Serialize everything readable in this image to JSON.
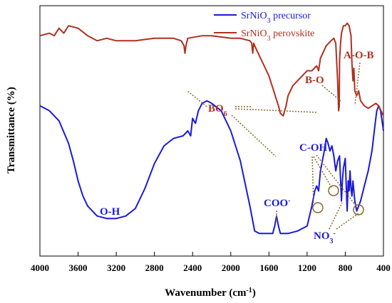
{
  "chart_data": {
    "type": "line",
    "xlabel": "Wavenumber (cm",
    "xlabel_sup": "-1",
    "xlabel_tail": ")",
    "ylabel": "Transmittance (%)",
    "xlim": [
      4000,
      400
    ],
    "x_reversed": true,
    "xticks": [
      4000,
      3600,
      3200,
      2800,
      2400,
      2000,
      1600,
      1200,
      800,
      400
    ],
    "ylim": [
      0,
      100
    ],
    "grid": false,
    "legend_position": "top-right",
    "series": [
      {
        "name": "SrNiO3 precursor",
        "legend_main": "SrNiO",
        "legend_sub": "3",
        "legend_tail": " precursor",
        "color": "#1a1adb",
        "points": [
          [
            4000,
            60
          ],
          [
            3900,
            58
          ],
          [
            3800,
            54
          ],
          [
            3700,
            45
          ],
          [
            3650,
            38
          ],
          [
            3600,
            30
          ],
          [
            3550,
            24
          ],
          [
            3500,
            20
          ],
          [
            3400,
            16
          ],
          [
            3300,
            15
          ],
          [
            3200,
            15
          ],
          [
            3100,
            16
          ],
          [
            3000,
            19
          ],
          [
            2900,
            27
          ],
          [
            2800,
            37
          ],
          [
            2700,
            44
          ],
          [
            2600,
            47
          ],
          [
            2500,
            48
          ],
          [
            2450,
            50
          ],
          [
            2420,
            48
          ],
          [
            2400,
            55
          ],
          [
            2370,
            53
          ],
          [
            2340,
            58
          ],
          [
            2300,
            61
          ],
          [
            2250,
            62
          ],
          [
            2200,
            61
          ],
          [
            2100,
            58
          ],
          [
            2000,
            50
          ],
          [
            1900,
            38
          ],
          [
            1800,
            20
          ],
          [
            1750,
            10
          ],
          [
            1700,
            9
          ],
          [
            1600,
            9
          ],
          [
            1560,
            9
          ],
          [
            1540,
            12
          ],
          [
            1520,
            16
          ],
          [
            1500,
            12
          ],
          [
            1480,
            9
          ],
          [
            1400,
            9
          ],
          [
            1300,
            10
          ],
          [
            1200,
            12
          ],
          [
            1150,
            20
          ],
          [
            1120,
            26
          ],
          [
            1100,
            28
          ],
          [
            1080,
            26
          ],
          [
            1060,
            34
          ],
          [
            1040,
            38
          ],
          [
            1020,
            42
          ],
          [
            1000,
            47
          ],
          [
            980,
            45
          ],
          [
            960,
            42
          ],
          [
            940,
            44
          ],
          [
            920,
            40
          ],
          [
            900,
            34
          ],
          [
            880,
            38
          ],
          [
            860,
            40
          ],
          [
            840,
            22
          ],
          [
            830,
            30
          ],
          [
            820,
            35
          ],
          [
            800,
            39
          ],
          [
            790,
            28
          ],
          [
            780,
            18
          ],
          [
            770,
            30
          ],
          [
            760,
            26
          ],
          [
            750,
            34
          ],
          [
            740,
            27
          ],
          [
            730,
            24
          ],
          [
            720,
            30
          ],
          [
            700,
            22
          ],
          [
            680,
            18
          ],
          [
            660,
            20
          ],
          [
            640,
            22
          ],
          [
            600,
            28
          ],
          [
            560,
            34
          ],
          [
            520,
            42
          ],
          [
            490,
            52
          ],
          [
            470,
            58
          ],
          [
            450,
            60
          ],
          [
            430,
            58
          ],
          [
            400,
            50
          ]
        ]
      },
      {
        "name": "SrNiO3 perovskite",
        "legend_main": "SrNiO",
        "legend_sub": "3",
        "legend_tail": " perovskite",
        "color": "#b03020",
        "points": [
          [
            4000,
            88
          ],
          [
            3900,
            89
          ],
          [
            3850,
            88
          ],
          [
            3800,
            91
          ],
          [
            3750,
            89
          ],
          [
            3700,
            92
          ],
          [
            3600,
            91
          ],
          [
            3500,
            88
          ],
          [
            3400,
            86
          ],
          [
            3300,
            87
          ],
          [
            3200,
            86
          ],
          [
            3000,
            86
          ],
          [
            2800,
            87
          ],
          [
            2600,
            87
          ],
          [
            2520,
            86
          ],
          [
            2490,
            84
          ],
          [
            2480,
            81
          ],
          [
            2470,
            84
          ],
          [
            2450,
            87
          ],
          [
            2300,
            88
          ],
          [
            2200,
            88
          ],
          [
            2000,
            87
          ],
          [
            1900,
            87
          ],
          [
            1800,
            86
          ],
          [
            1780,
            85
          ],
          [
            1770,
            81
          ],
          [
            1760,
            85
          ],
          [
            1750,
            84
          ],
          [
            1700,
            80
          ],
          [
            1650,
            76
          ],
          [
            1600,
            72
          ],
          [
            1550,
            66
          ],
          [
            1500,
            60
          ],
          [
            1480,
            57
          ],
          [
            1450,
            56
          ],
          [
            1420,
            60
          ],
          [
            1400,
            64
          ],
          [
            1350,
            68
          ],
          [
            1300,
            70
          ],
          [
            1250,
            72
          ],
          [
            1200,
            74
          ],
          [
            1150,
            74
          ],
          [
            1100,
            76
          ],
          [
            1080,
            74
          ],
          [
            1060,
            79
          ],
          [
            1000,
            84
          ],
          [
            950,
            86
          ],
          [
            920,
            87
          ],
          [
            900,
            85
          ],
          [
            880,
            70
          ],
          [
            870,
            58
          ],
          [
            863,
            60
          ],
          [
            860,
            78
          ],
          [
            850,
            85
          ],
          [
            840,
            89
          ],
          [
            820,
            92
          ],
          [
            800,
            92
          ],
          [
            780,
            93
          ],
          [
            760,
            92
          ],
          [
            740,
            88
          ],
          [
            730,
            77
          ],
          [
            720,
            70
          ],
          [
            710,
            75
          ],
          [
            700,
            66
          ],
          [
            680,
            64
          ],
          [
            660,
            66
          ],
          [
            640,
            62
          ],
          [
            600,
            60
          ],
          [
            560,
            59
          ],
          [
            520,
            60
          ],
          [
            480,
            61
          ],
          [
            450,
            60
          ],
          [
            400,
            56
          ]
        ]
      }
    ],
    "annotations": {
      "oh": "O-H",
      "coo_main": "COO",
      "coo_sup": "-",
      "coh": "C-OH",
      "no3_main": "NO",
      "no3_sub": "3",
      "no3_sup": "-",
      "bo6_main": "BO",
      "bo6_sub": "6",
      "b_o": "B-O",
      "a_o_b": "A-O-B"
    }
  }
}
